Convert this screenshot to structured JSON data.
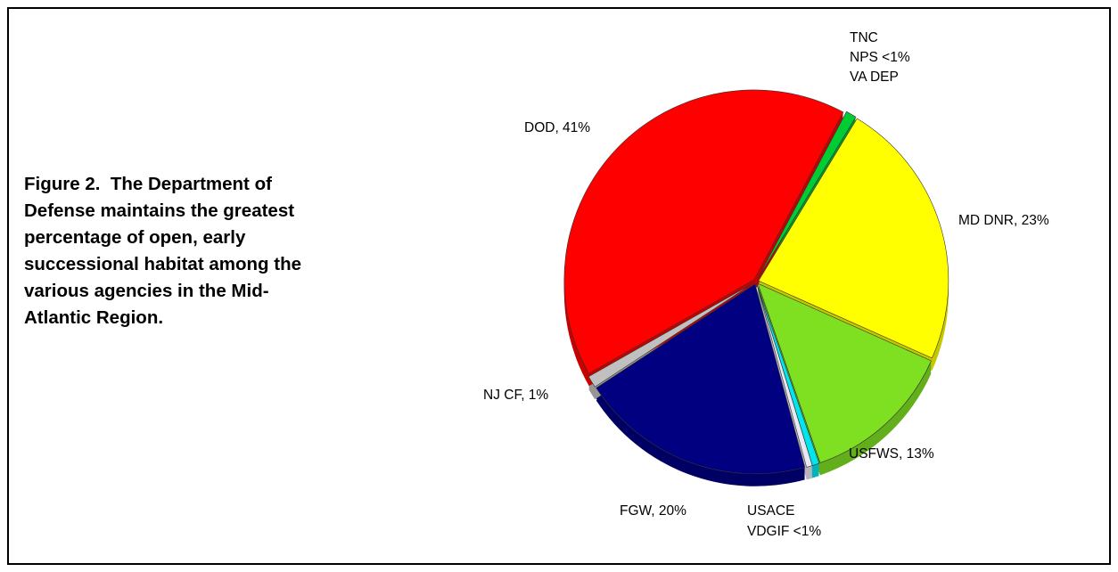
{
  "caption": "Figure 2.  The Department of Defense maintains the greatest percentage of open, early successional habitat among the various agencies in the Mid-Atlantic Region.",
  "chart_data": {
    "type": "pie",
    "style": "3d-exploded",
    "slices": [
      {
        "name": "TNC / NPS / VA DEP",
        "value": 0.9,
        "color": "#00cc33"
      },
      {
        "name": "MD DNR",
        "value": 23,
        "color": "#ffff00"
      },
      {
        "name": "USFWS",
        "value": 13,
        "color": "#7fe022"
      },
      {
        "name": "USACE / VDGIF",
        "value": 0.6,
        "color": "#00e5ee"
      },
      {
        "name": "USACE / VDGIF (light)",
        "value": 0.5,
        "color": "#e8e8f4"
      },
      {
        "name": "FGW",
        "value": 20,
        "color": "#000080"
      },
      {
        "name": "NJ CF",
        "value": 1,
        "color": "#c0c0c0"
      },
      {
        "name": "DOD",
        "value": 41,
        "color": "#ff0000"
      }
    ],
    "labels": {
      "tnc": "TNC",
      "nps": "NPS <1%",
      "vadep": "VA DEP",
      "dod": "DOD, 41%",
      "mddnr": "MD DNR, 23%",
      "njcf": "NJ CF, 1%",
      "usfws": "USFWS, 13%",
      "fgw": "FGW, 20%",
      "usace": "USACE",
      "vdgif": "VDGIF <1%"
    }
  }
}
